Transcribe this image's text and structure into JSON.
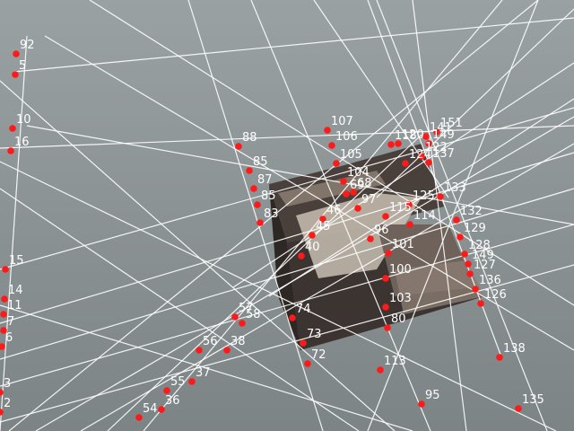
{
  "scene": {
    "description_colors": {
      "floor_top": "#9aa1a3",
      "floor_bottom": "#7d8486",
      "object_dark": "#3b3431",
      "object_light": "#c8bfb2",
      "line_color": "#ffffff",
      "point_color": "#ff1a1a"
    }
  },
  "labels": [
    {
      "text": "92"
    },
    {
      "text": "5"
    },
    {
      "text": "10"
    },
    {
      "text": "16"
    },
    {
      "text": "15"
    },
    {
      "text": "14"
    },
    {
      "text": "11"
    },
    {
      "text": "7"
    },
    {
      "text": "6"
    },
    {
      "text": "3"
    },
    {
      "text": "2"
    },
    {
      "text": "88"
    },
    {
      "text": "85"
    },
    {
      "text": "87"
    },
    {
      "text": "85"
    },
    {
      "text": "83"
    },
    {
      "text": "107"
    },
    {
      "text": "106"
    },
    {
      "text": "105"
    },
    {
      "text": "104"
    },
    {
      "text": "118"
    },
    {
      "text": "120"
    },
    {
      "text": "124"
    },
    {
      "text": "122"
    },
    {
      "text": "151"
    },
    {
      "text": "141"
    },
    {
      "text": "149"
    },
    {
      "text": "137"
    },
    {
      "text": "133"
    },
    {
      "text": "132"
    },
    {
      "text": "129"
    },
    {
      "text": "128"
    },
    {
      "text": "149"
    },
    {
      "text": "127"
    },
    {
      "text": "136"
    },
    {
      "text": "126"
    },
    {
      "text": "125"
    },
    {
      "text": "115"
    },
    {
      "text": "114"
    },
    {
      "text": "97"
    },
    {
      "text": "96"
    },
    {
      "text": "101"
    },
    {
      "text": "100"
    },
    {
      "text": "103"
    },
    {
      "text": "80"
    },
    {
      "text": "113"
    },
    {
      "text": "95"
    },
    {
      "text": "138"
    },
    {
      "text": "135"
    },
    {
      "text": "74"
    },
    {
      "text": "73"
    },
    {
      "text": "72"
    },
    {
      "text": "57"
    },
    {
      "text": "58"
    },
    {
      "text": "56"
    },
    {
      "text": "38"
    },
    {
      "text": "55"
    },
    {
      "text": "37"
    },
    {
      "text": "54"
    },
    {
      "text": "36"
    },
    {
      "text": "69"
    },
    {
      "text": "68"
    },
    {
      "text": "46"
    },
    {
      "text": "45"
    },
    {
      "text": "40"
    }
  ]
}
